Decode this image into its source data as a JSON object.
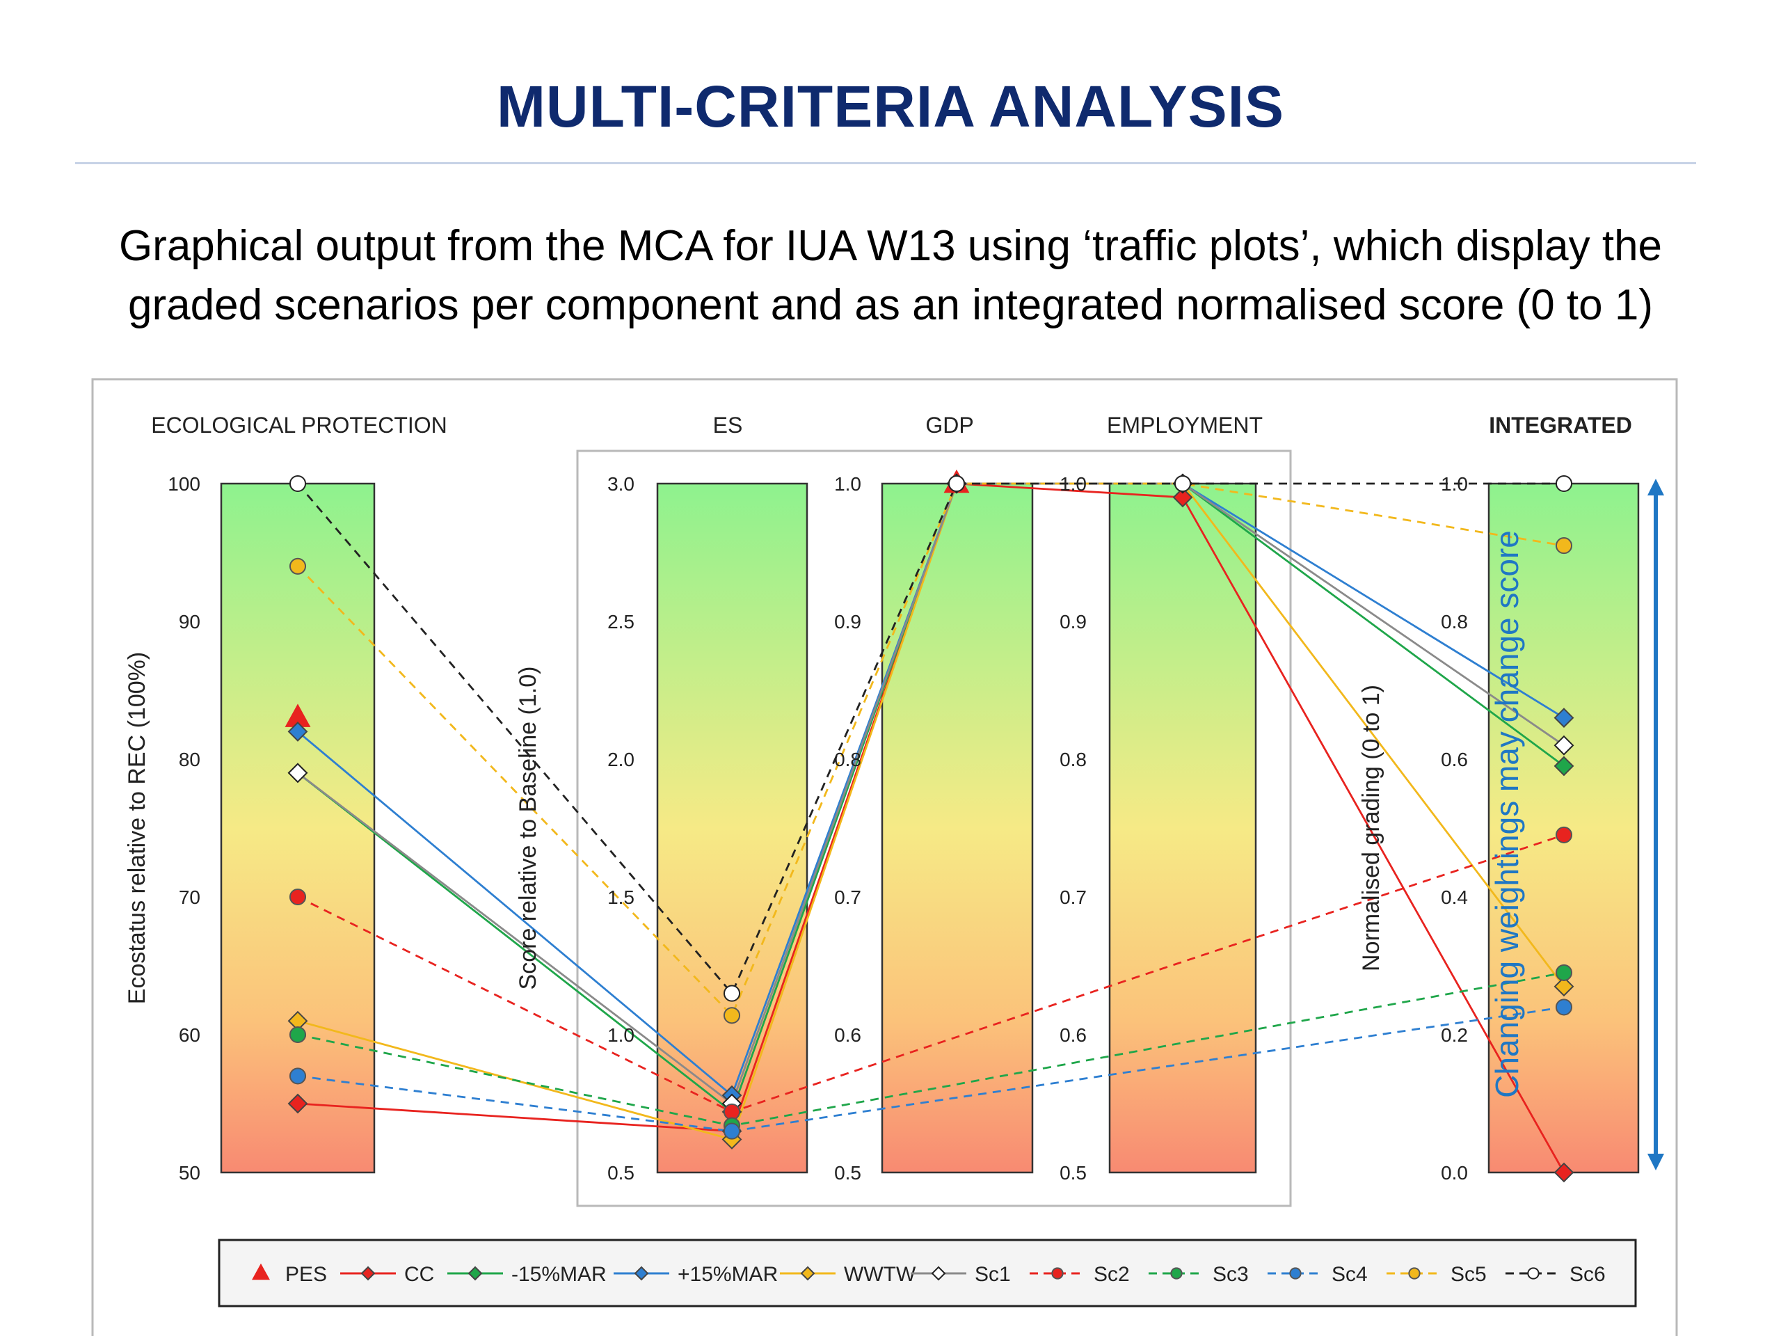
{
  "page": {
    "title": "MULTI-CRITERIA ANALYSIS",
    "subtitle_line1": "Graphical output from the MCA for IUA W13 using ‘traffic plots’, which display the",
    "subtitle_line2": "graded scenarios per component and as an integrated normalised score (0 to 1)",
    "side_note": "Changing weightings may change score"
  },
  "chart_data": {
    "type": "line",
    "panels": [
      {
        "key": "eco",
        "title": "ECOLOGICAL PROTECTION",
        "bold": false,
        "ylim": [
          50,
          100
        ],
        "ticks": [
          "100",
          "90",
          "80",
          "70",
          "60",
          "50"
        ],
        "ylabel": "Ecostatus relative to REC (100%)"
      },
      {
        "key": "es",
        "title": "ES",
        "bold": false,
        "ylim": [
          0.5,
          3.0
        ],
        "ticks": [
          "3.0",
          "2.5",
          "2.0",
          "1.5",
          "1.0",
          "0.5"
        ],
        "ylabel": "Score relative to Baseline (1.0)"
      },
      {
        "key": "gdp",
        "title": "GDP",
        "bold": false,
        "ylim": [
          0.5,
          1.0
        ],
        "ticks": [
          "1.0",
          "0.9",
          "0.8",
          "0.7",
          "0.6",
          "0.5"
        ],
        "ylabel": ""
      },
      {
        "key": "emp",
        "title": "EMPLOYMENT",
        "bold": false,
        "ylim": [
          0.5,
          1.0
        ],
        "ticks": [
          "1.0",
          "0.9",
          "0.8",
          "0.7",
          "0.6",
          "0.5"
        ],
        "ylabel": "Normalised grading (0 to 1)"
      },
      {
        "key": "int",
        "title": "INTEGRATED",
        "bold": true,
        "ylim": [
          0.0,
          1.0
        ],
        "ticks": [
          "1.0",
          "0.8",
          "0.6",
          "0.4",
          "0.2",
          "0.0"
        ],
        "ylabel": ""
      }
    ],
    "series": [
      {
        "name": "PES",
        "color": "#e8231f",
        "dash": false,
        "marker": "triangle",
        "values": [
          83,
          null,
          1.0,
          null,
          null
        ]
      },
      {
        "name": "CC",
        "color": "#e8231f",
        "dash": false,
        "marker": "diamond",
        "values": [
          55,
          0.65,
          1.0,
          0.99,
          0.0
        ]
      },
      {
        "name": "-15%MAR",
        "color": "#1fa64a",
        "dash": false,
        "marker": "diamond",
        "values": [
          79,
          0.72,
          1.0,
          1.0,
          0.59
        ]
      },
      {
        "name": "+15%MAR",
        "color": "#2e7fd1",
        "dash": false,
        "marker": "diamond",
        "values": [
          82,
          0.78,
          1.0,
          1.0,
          0.66
        ]
      },
      {
        "name": "WWTW",
        "color": "#f2b81c",
        "dash": false,
        "marker": "diamond",
        "values": [
          61,
          0.62,
          1.0,
          1.0,
          0.27
        ]
      },
      {
        "name": "Sc1",
        "color": "#8a8a8a",
        "dash": false,
        "marker": "open-diamond",
        "values": [
          79,
          0.75,
          1.0,
          1.0,
          0.62
        ]
      },
      {
        "name": "Sc2",
        "color": "#e8231f",
        "dash": true,
        "marker": "circle",
        "values": [
          70,
          0.72,
          null,
          null,
          0.49
        ]
      },
      {
        "name": "Sc3",
        "color": "#1fa64a",
        "dash": true,
        "marker": "circle",
        "values": [
          60,
          0.67,
          null,
          null,
          0.29
        ]
      },
      {
        "name": "Sc4",
        "color": "#2e7fd1",
        "dash": true,
        "marker": "circle",
        "values": [
          57,
          0.65,
          null,
          null,
          0.24
        ]
      },
      {
        "name": "Sc5",
        "color": "#f2b81c",
        "dash": true,
        "marker": "circle",
        "values": [
          94,
          1.07,
          1.0,
          1.0,
          0.91
        ]
      },
      {
        "name": "Sc6",
        "color": "#222222",
        "dash": true,
        "marker": "open-circle",
        "values": [
          100,
          1.15,
          1.0,
          1.0,
          1.0
        ]
      }
    ],
    "legend_position": "bottom",
    "grid": false
  }
}
